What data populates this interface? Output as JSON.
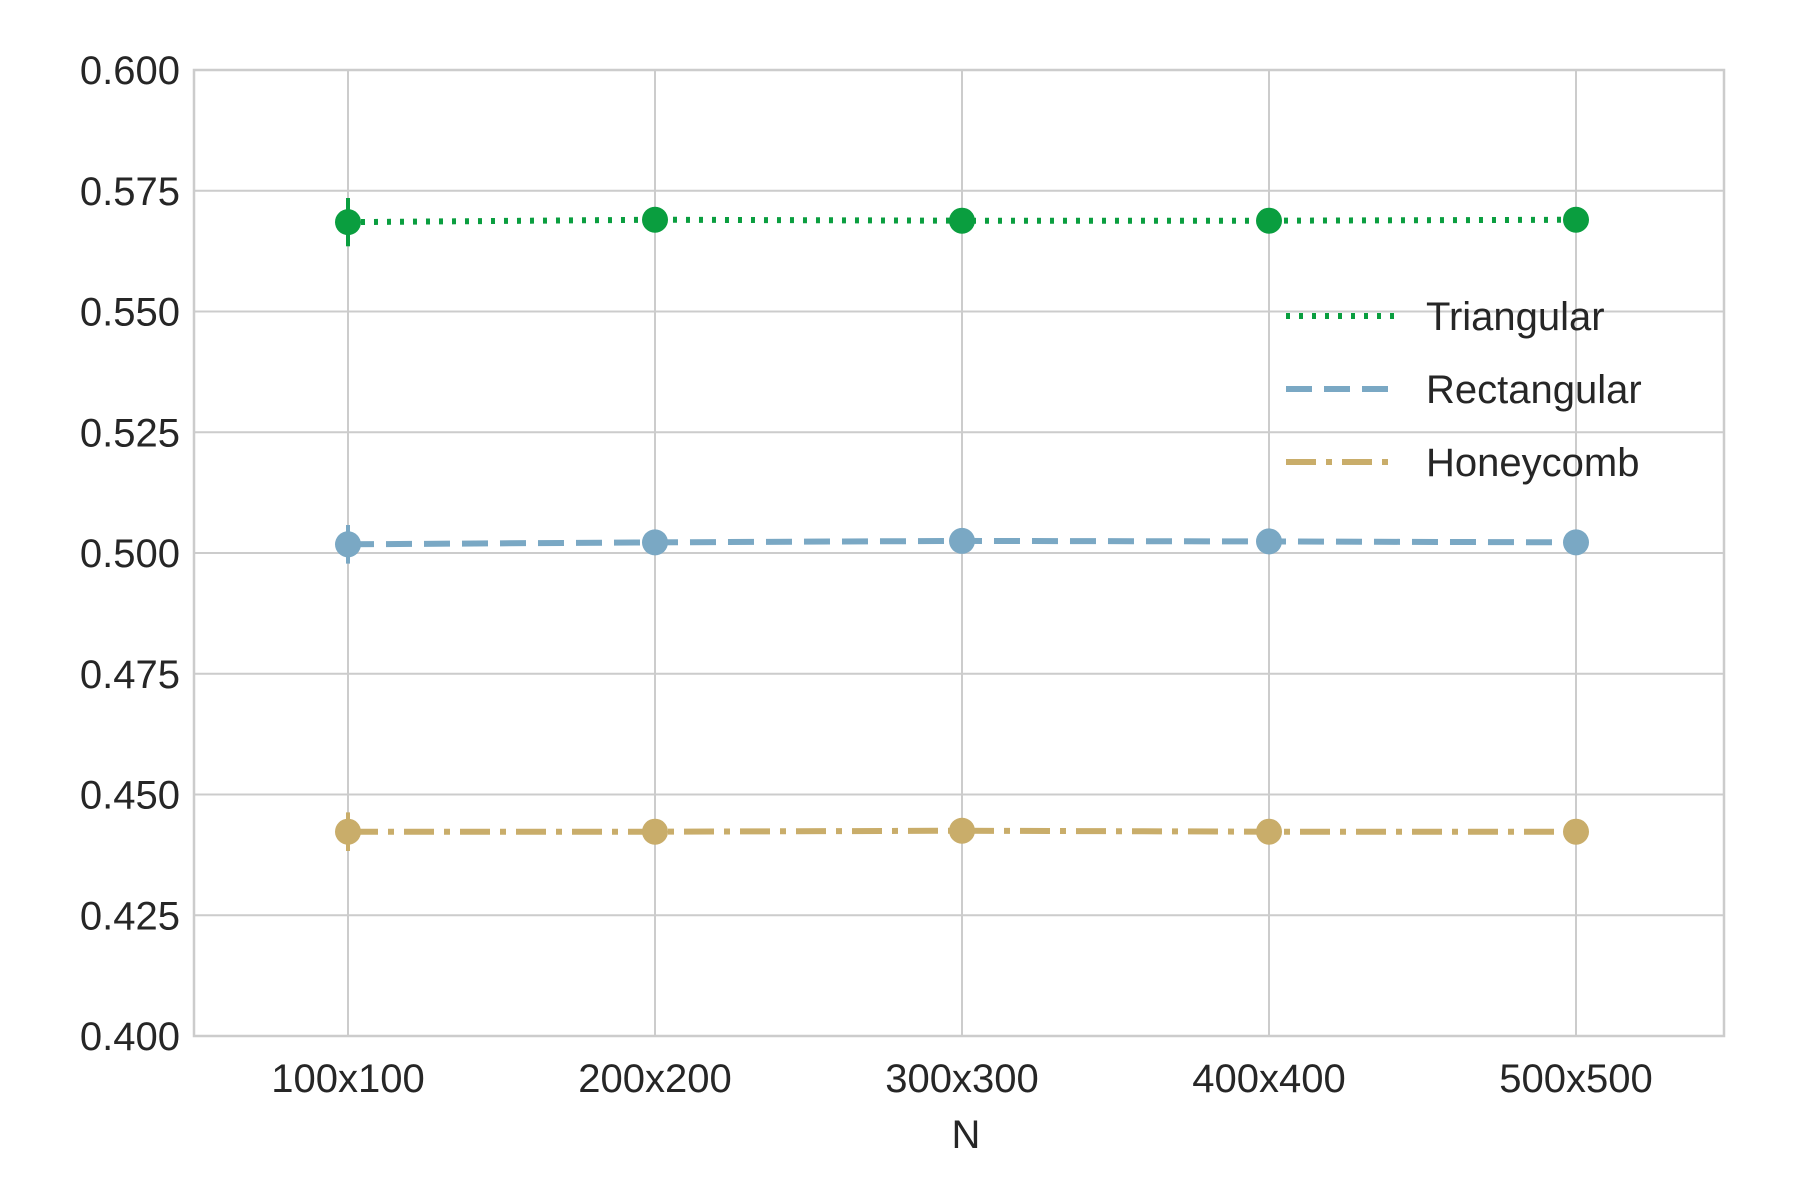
{
  "chart_data": {
    "type": "line",
    "title": "",
    "xlabel": "N",
    "ylabel": "",
    "categories": [
      "100x100",
      "200x200",
      "300x300",
      "400x400",
      "500x500"
    ],
    "ylim": [
      0.4,
      0.6
    ],
    "yticks": [
      "0.400",
      "0.425",
      "0.450",
      "0.475",
      "0.500",
      "0.525",
      "0.550",
      "0.575",
      "0.600"
    ],
    "grid": true,
    "legend_position": "right",
    "series": [
      {
        "name": "Triangular",
        "values": [
          0.5685,
          0.569,
          0.5688,
          0.5688,
          0.569
        ],
        "errors": [
          0.005,
          0.0008,
          0.0006,
          0.0006,
          0.0005
        ],
        "color": "#0a9e3f",
        "line_style": "dotted"
      },
      {
        "name": "Rectangular",
        "values": [
          0.5018,
          0.5022,
          0.5025,
          0.5024,
          0.5022
        ],
        "errors": [
          0.004,
          0.001,
          0.0008,
          0.0007,
          0.0006
        ],
        "color": "#7aa8c4",
        "line_style": "dashed"
      },
      {
        "name": "Honeycomb",
        "values": [
          0.4423,
          0.4423,
          0.4425,
          0.4423,
          0.4423
        ],
        "errors": [
          0.004,
          0.001,
          0.0008,
          0.0007,
          0.0006
        ],
        "color": "#c9ad6a",
        "line_style": "dashdot"
      }
    ]
  }
}
